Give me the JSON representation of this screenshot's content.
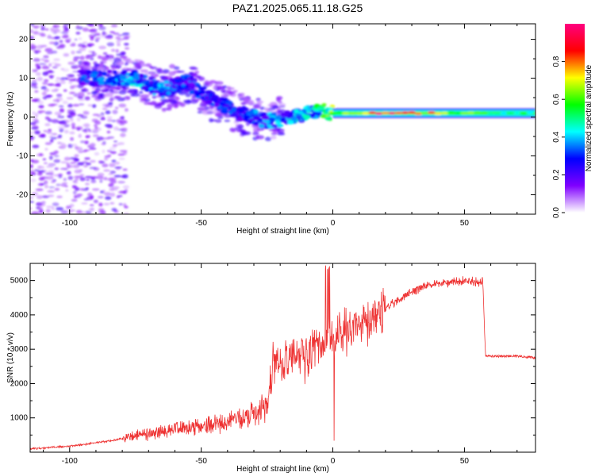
{
  "title": "PAZ1.2025.065.11.18.G25",
  "chart_data": [
    {
      "type": "heatmap",
      "xlabel": "Height of straight line (km)",
      "ylabel": "Frequency (Hz)",
      "xlim": [
        -115,
        77
      ],
      "ylim": [
        -25,
        24
      ],
      "xticks": [
        -100,
        -50,
        0,
        50
      ],
      "yticks": [
        -20,
        -10,
        0,
        10,
        20
      ],
      "colorbar": {
        "label": "Normalized spectral amplitude",
        "range": [
          0,
          1
        ],
        "ticks": [
          0.0,
          0.2,
          0.4,
          0.6,
          0.8
        ],
        "tick_labels": [
          "0.0",
          "0.2",
          "0.4",
          "0.6",
          "0.8"
        ],
        "colors": [
          "#ffffff",
          "#8000ff",
          "#0000ff",
          "#00ffff",
          "#00ff00",
          "#ffff00",
          "#ff0000",
          "#ff0080"
        ]
      },
      "ridge": {
        "x": [
          -95,
          -85,
          -75,
          -65,
          -55,
          -45,
          -35,
          -25,
          -15,
          -5,
          0,
          10,
          20,
          30,
          40,
          50,
          60,
          70,
          77
        ],
        "freq": [
          10,
          10,
          10,
          7,
          9,
          4,
          1,
          -1,
          0,
          2,
          1,
          1,
          1,
          1,
          1,
          1,
          1,
          1,
          1
        ],
        "amplitude": [
          0.3,
          0.35,
          0.4,
          0.35,
          0.3,
          0.3,
          0.3,
          0.35,
          0.4,
          0.5,
          0.6,
          0.8,
          0.9,
          0.85,
          0.7,
          0.6,
          0.55,
          0.5,
          0.5
        ]
      }
    },
    {
      "type": "line",
      "xlabel": "Height of straight line (km)",
      "ylabel": "SNR (10 * v/v)",
      "xlim": [
        -115,
        77
      ],
      "ylim": [
        0,
        5500
      ],
      "xticks": [
        -100,
        -50,
        0,
        50
      ],
      "yticks": [
        1000,
        2000,
        3000,
        4000,
        5000
      ],
      "color": "#ee3333",
      "series": [
        {
          "x": [
            -115,
            -110,
            -105,
            -100,
            -95,
            -90,
            -85,
            -80,
            -75,
            -70,
            -65,
            -60,
            -55,
            -50,
            -45,
            -40,
            -35,
            -30,
            -25,
            -22,
            -20,
            -15,
            -10,
            -8,
            -5,
            -3,
            0,
            5,
            10,
            15,
            20,
            25,
            30,
            35,
            40,
            45,
            50,
            55,
            57,
            58,
            60,
            65,
            70,
            77
          ],
          "values": [
            100,
            120,
            150,
            170,
            220,
            280,
            320,
            400,
            500,
            550,
            600,
            650,
            700,
            750,
            800,
            900,
            1000,
            1100,
            1300,
            2600,
            2400,
            2800,
            2700,
            3000,
            3100,
            3200,
            3300,
            3500,
            3700,
            3900,
            4200,
            4450,
            4650,
            4850,
            4900,
            4950,
            5000,
            4950,
            4950,
            2800,
            2800,
            2800,
            2800,
            2750
          ]
        }
      ]
    }
  ]
}
